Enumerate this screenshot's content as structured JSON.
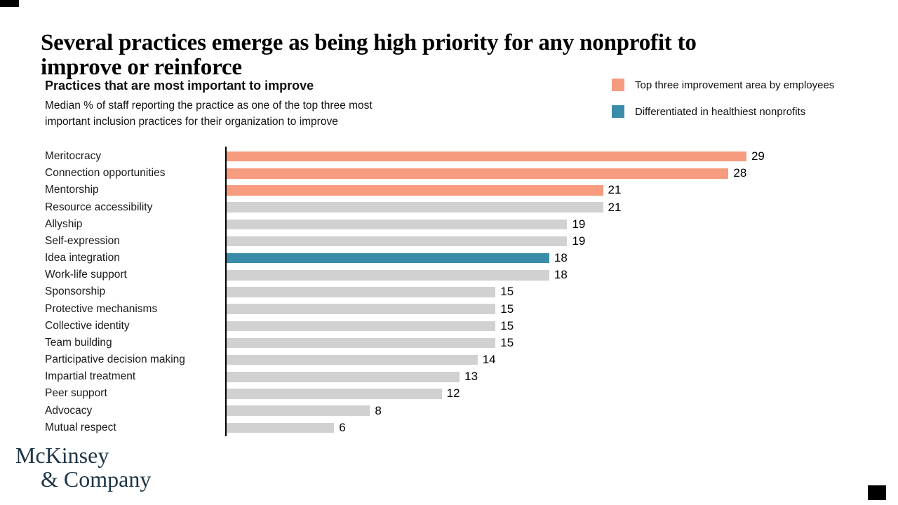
{
  "slide_title_lines": [
    "Several practices emerge as being high priority for any nonprofit to",
    "improve or reinforce"
  ],
  "exhibit": {
    "subtitle": "Practices that are most important to improve",
    "description_lines": [
      "Median % of staff reporting the practice as one of the top three most",
      "important inclusion practices for their organization to improve"
    ]
  },
  "legend": [
    {
      "label": "Top three improvement area by employees",
      "color": "#F69B7E"
    },
    {
      "label": "Differentiated in healthiest nonprofits",
      "color": "#3A8CA8"
    }
  ],
  "logo": {
    "line1": "McKinsey",
    "line2": "& Company",
    "color": "#1E3647"
  },
  "chart_data": {
    "type": "bar",
    "orientation": "horizontal",
    "title": "Practices that are most important to improve",
    "subtitle": "Median % of staff reporting the practice as one of the top three most important inclusion practices for their organization to improve",
    "categories": [
      "Meritocracy",
      "Connection opportunities",
      "Mentorship",
      "Resource accessibility",
      "Allyship",
      "Self-expression",
      "Idea integration",
      "Work-life support",
      "Sponsorship",
      "Protective mechanisms",
      "Collective identity",
      "Team building",
      "Participative decision making",
      "Impartial treatment",
      "Peer support",
      "Advocacy",
      "Mutual respect"
    ],
    "values": [
      29,
      28,
      21,
      21,
      19,
      19,
      18,
      18,
      15,
      15,
      15,
      15,
      14,
      13,
      12,
      8,
      6
    ],
    "bar_groups": [
      "employees_top3",
      "employees_top3",
      "employees_top3",
      "other",
      "other",
      "other",
      "healthiest_diff",
      "other",
      "other",
      "other",
      "other",
      "other",
      "other",
      "other",
      "other",
      "other",
      "other"
    ],
    "group_colors": {
      "employees_top3": "#F69B7E",
      "healthiest_diff": "#3A8CA8",
      "other": "#D1D1D1"
    },
    "value_labels_shown": true,
    "xlim": [
      0,
      29
    ],
    "gridlines": false,
    "legend_position": "top-right"
  }
}
